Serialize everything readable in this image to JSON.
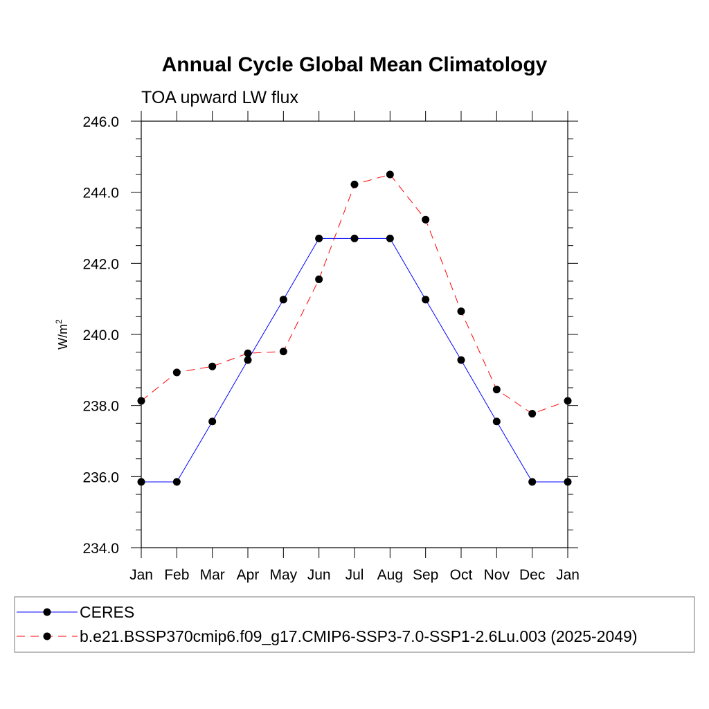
{
  "chart_data": {
    "type": "line",
    "title": "Annual Cycle Global Mean Climatology",
    "subtitle": "TOA upward LW flux",
    "xlabel": "",
    "ylabel": "W/m",
    "ylabel_superscript": "2",
    "categories": [
      "Jan",
      "Feb",
      "Mar",
      "Apr",
      "May",
      "Jun",
      "Jul",
      "Aug",
      "Sep",
      "Oct",
      "Nov",
      "Dec",
      "Jan"
    ],
    "ylim": [
      234.0,
      246.0
    ],
    "yticks": [
      "234.0",
      "236.0",
      "238.0",
      "240.0",
      "242.0",
      "244.0",
      "246.0"
    ],
    "grid": false,
    "legend_position": "bottom",
    "series": [
      {
        "name": "CERES",
        "color": "#0000ff",
        "style": "solid",
        "values": [
          235.85,
          235.85,
          237.55,
          239.28,
          240.98,
          242.7,
          242.7,
          242.7,
          240.98,
          239.28,
          237.55,
          235.85,
          235.85
        ]
      },
      {
        "name": "b.e21.BSSP370cmip6.f09_g17.CMIP6-SSP3-7.0-SSP1-2.6Lu.003 (2025-2049)",
        "color": "#ff0000",
        "style": "dashed",
        "values": [
          238.13,
          238.93,
          239.1,
          239.47,
          239.52,
          241.55,
          244.22,
          244.5,
          243.23,
          240.65,
          238.45,
          237.77,
          238.13
        ]
      }
    ]
  }
}
